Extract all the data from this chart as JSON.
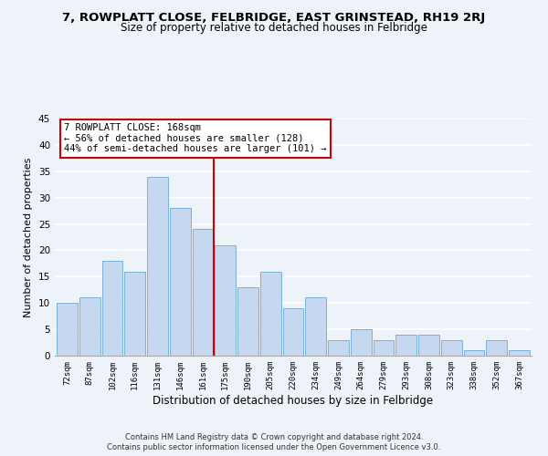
{
  "title1": "7, ROWPLATT CLOSE, FELBRIDGE, EAST GRINSTEAD, RH19 2RJ",
  "title2": "Size of property relative to detached houses in Felbridge",
  "xlabel": "Distribution of detached houses by size in Felbridge",
  "ylabel": "Number of detached properties",
  "bin_labels": [
    "72sqm",
    "87sqm",
    "102sqm",
    "116sqm",
    "131sqm",
    "146sqm",
    "161sqm",
    "175sqm",
    "190sqm",
    "205sqm",
    "220sqm",
    "234sqm",
    "249sqm",
    "264sqm",
    "279sqm",
    "293sqm",
    "308sqm",
    "323sqm",
    "338sqm",
    "352sqm",
    "367sqm"
  ],
  "bar_heights": [
    10,
    11,
    18,
    16,
    34,
    28,
    24,
    21,
    13,
    16,
    9,
    11,
    3,
    5,
    3,
    4,
    4,
    3,
    1,
    3,
    1
  ],
  "bar_color": "#c5d8f0",
  "bar_edgecolor": "#7aafd4",
  "vline_color": "#cc0000",
  "annotation_title": "7 ROWPLATT CLOSE: 168sqm",
  "annotation_line1": "← 56% of detached houses are smaller (128)",
  "annotation_line2": "44% of semi-detached houses are larger (101) →",
  "annotation_box_color": "#ffffff",
  "annotation_box_edgecolor": "#cc0000",
  "ylim": [
    0,
    45
  ],
  "yticks": [
    0,
    5,
    10,
    15,
    20,
    25,
    30,
    35,
    40,
    45
  ],
  "footer1": "Contains HM Land Registry data © Crown copyright and database right 2024.",
  "footer2": "Contains public sector information licensed under the Open Government Licence v3.0.",
  "background_color": "#eef2f9",
  "grid_color": "#ffffff",
  "title1_fontsize": 9.5,
  "title2_fontsize": 8.5
}
